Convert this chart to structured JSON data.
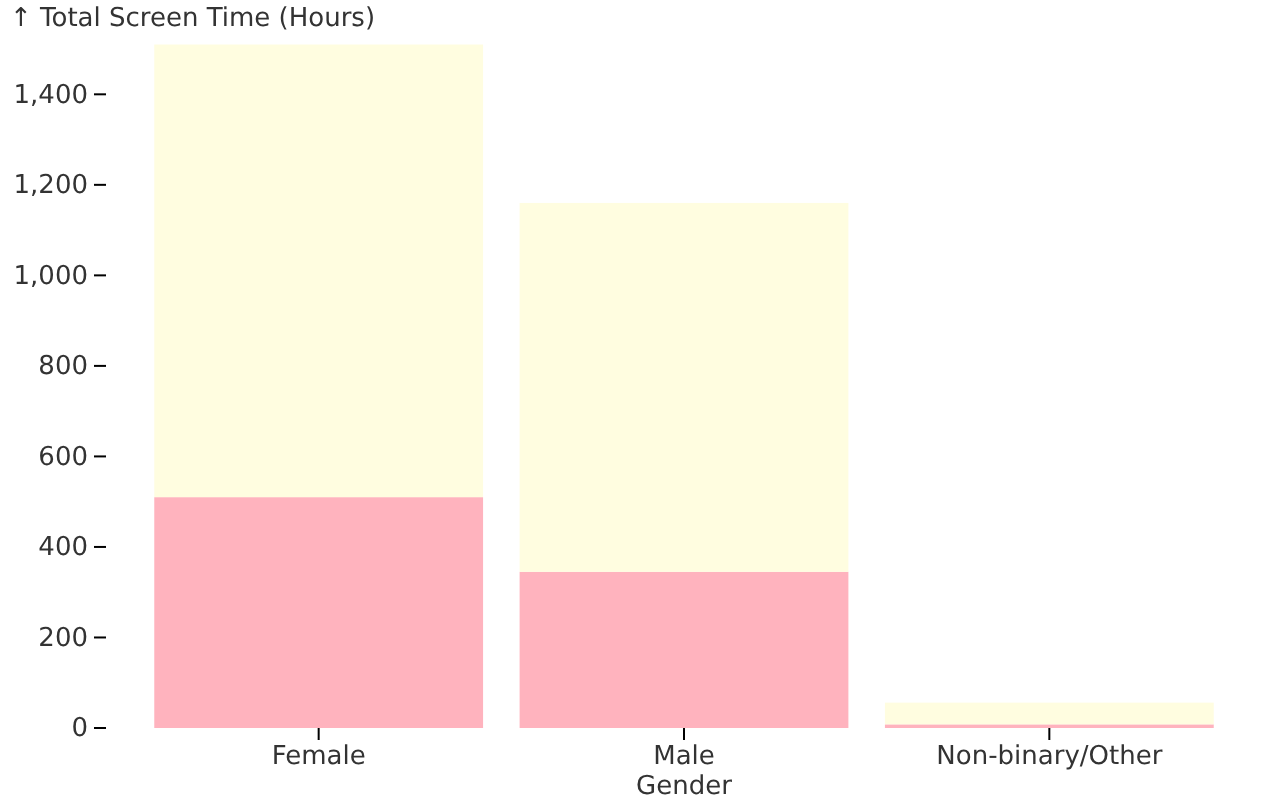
{
  "chart_data": {
    "type": "bar",
    "stacked": true,
    "ylabel": "↑ Total Screen Time (Hours)",
    "xlabel": "Gender",
    "categories": [
      "Female",
      "Male",
      "Non-binary/Other"
    ],
    "series": [
      {
        "color": "#ffb3be",
        "values": [
          510,
          345,
          8
        ]
      },
      {
        "color": "#fffde0",
        "values": [
          1000,
          815,
          48
        ]
      }
    ],
    "ylim": [
      0,
      1520
    ],
    "yticks": [
      0,
      200,
      400,
      600,
      800,
      {
        "value": 1000,
        "label": "1,000"
      },
      {
        "value": 1200,
        "label": "1,200"
      },
      {
        "value": 1400,
        "label": "1,400"
      }
    ]
  }
}
